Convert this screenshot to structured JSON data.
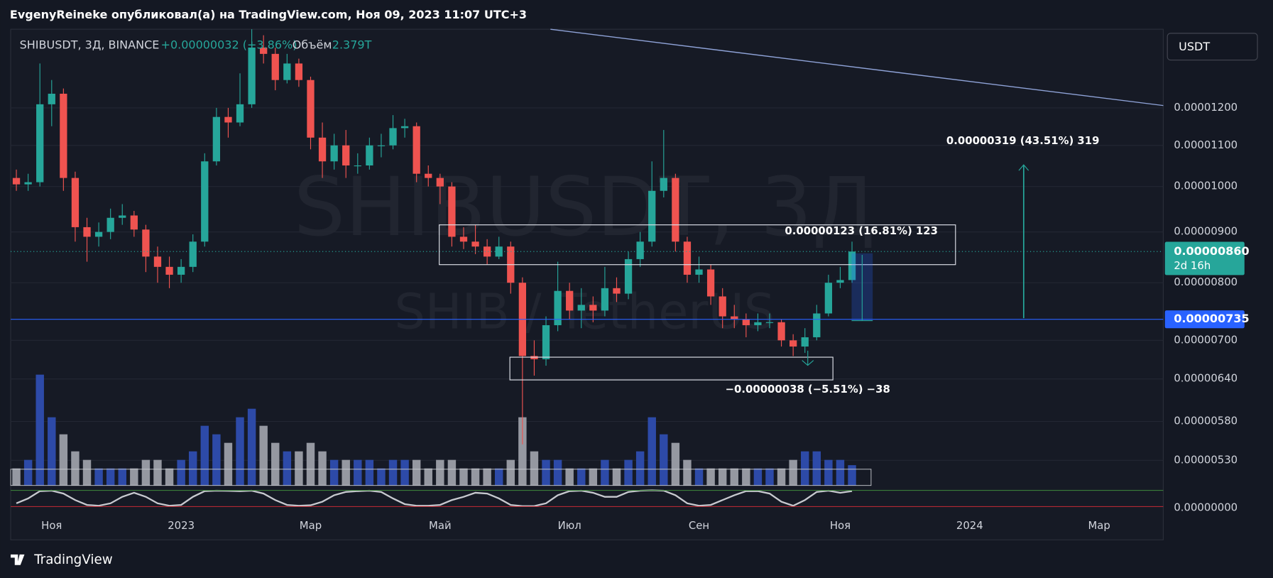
{
  "header": {
    "author_line": "EvgenyReineke опубликовал(а) на TradingView.com, Ноя 09, 2023 11:07 UTC+3"
  },
  "chart_data": {
    "type": "candlestick",
    "symbol": "SHIBUSDT, 3Д, BINANCE",
    "change": "+0.00000032 (+3.86%)",
    "watermark": "SHIBUSDT, 3Д",
    "watermark_sub": "SHIB / TetherUS",
    "currency": "USDT",
    "log": true,
    "grid": true,
    "up_color": "#26a69a",
    "down_color": "#ef5350",
    "categories": [
      null,
      null,
      null,
      "Ноя",
      null,
      null,
      null,
      null,
      null,
      null,
      null,
      null,
      null,
      null,
      "2023",
      null,
      null,
      null,
      null,
      null,
      null,
      null,
      null,
      null,
      null,
      "Мар",
      null,
      null,
      null,
      null,
      null,
      null,
      null,
      null,
      null,
      null,
      "Май",
      null,
      null,
      null,
      null,
      null,
      null,
      null,
      null,
      null,
      null,
      "Июл",
      null,
      null,
      null,
      null,
      null,
      null,
      null,
      null,
      null,
      null,
      "Сен",
      null,
      null,
      null,
      null,
      null,
      null,
      null,
      null,
      null,
      null,
      null,
      "Ноя",
      null,
      null,
      null,
      null,
      null,
      null,
      null,
      null,
      null,
      null,
      "2024",
      null,
      null,
      null,
      null,
      null,
      null,
      null,
      null,
      null,
      null,
      "Мар",
      null,
      null,
      null,
      null,
      null
    ],
    "open": [
      1.02e-05,
      1.005e-05,
      1.01e-05,
      1.21e-05,
      1.24e-05,
      1.02e-05,
      9.1e-06,
      8.9e-06,
      9e-06,
      9.3e-06,
      9.35e-06,
      9.05e-06,
      8.5e-06,
      8.3e-06,
      8.15e-06,
      8.3e-06,
      8.8e-06,
      1.06e-05,
      1.175e-05,
      1.16e-05,
      1.21e-05,
      1.38e-05,
      1.36e-05,
      1.28e-05,
      1.33e-05,
      1.28e-05,
      1.12e-05,
      1.06e-05,
      1.1e-05,
      1.05e-05,
      1.05e-05,
      1.1e-05,
      1.1e-05,
      1.145e-05,
      1.15e-05,
      1.03e-05,
      1.02e-05,
      1e-05,
      8.9e-06,
      8.8e-06,
      8.7e-06,
      8.5e-06,
      8.7e-06,
      8e-06,
      6.75e-06,
      6.7e-06,
      7.25e-06,
      7.85e-06,
      7.5e-06,
      7.6e-06,
      7.5e-06,
      7.9e-06,
      7.8e-06,
      8.45e-06,
      8.8e-06,
      9.9e-06,
      1.02e-05,
      8.8e-06,
      8.15e-06,
      8.25e-06,
      7.75e-06,
      7.4e-06,
      7.35e-06,
      7.25e-06,
      7.3e-06,
      7.3e-06,
      7e-06,
      6.9e-06,
      7.05e-06,
      7.45e-06,
      8e-06,
      8.05e-06,
      null,
      null,
      null,
      null,
      null,
      null,
      null,
      null,
      null,
      null,
      null,
      null,
      null,
      null,
      null,
      null,
      null,
      null,
      null,
      null,
      null,
      null,
      null,
      null,
      null,
      null
    ],
    "high": [
      1.04e-05,
      1.03e-05,
      1.33e-05,
      1.28e-05,
      1.255e-05,
      1.035e-05,
      9.3e-06,
      9.2e-06,
      9.5e-06,
      9.6e-06,
      9.45e-06,
      9.15e-06,
      8.7e-06,
      8.5e-06,
      8.45e-06,
      8.95e-06,
      1.08e-05,
      1.2e-05,
      1.2e-05,
      1.3e-05,
      1.44e-05,
      1.42e-05,
      1.38e-05,
      1.36e-05,
      1.345e-05,
      1.29e-05,
      1.16e-05,
      1.13e-05,
      1.14e-05,
      1.08e-05,
      1.12e-05,
      1.13e-05,
      1.18e-05,
      1.17e-05,
      1.16e-05,
      1.05e-05,
      1.03e-05,
      1.01e-05,
      9.1e-06,
      9.15e-06,
      8.85e-06,
      8.9e-06,
      8.8e-06,
      8.1e-06,
      7e-06,
      7.4e-06,
      8.4e-06,
      8e-06,
      7.9e-06,
      7.75e-06,
      8.3e-06,
      8.1e-06,
      8.6e-06,
      9e-06,
      1.06e-05,
      1.14e-05,
      1.03e-05,
      8.9e-06,
      8.5e-06,
      8.35e-06,
      7.9e-06,
      7.6e-06,
      7.45e-06,
      7.45e-06,
      7.45e-06,
      7.35e-06,
      7.1e-06,
      7.2e-06,
      7.6e-06,
      8.15e-06,
      8.3e-06,
      8.8e-06,
      null,
      null,
      null,
      null,
      null,
      null,
      null,
      null,
      null,
      null,
      null,
      null,
      null,
      null,
      null,
      null,
      null,
      null,
      null,
      null,
      null,
      null,
      null,
      null,
      null,
      null
    ],
    "low": [
      9.9e-06,
      9.9e-06,
      1e-05,
      1.15e-05,
      9.9e-06,
      8.8e-06,
      8.4e-06,
      8.7e-06,
      8.85e-06,
      9.15e-06,
      8.9e-06,
      8.2e-06,
      8e-06,
      7.9e-06,
      8e-06,
      8.2e-06,
      8.7e-06,
      1.05e-05,
      1.12e-05,
      1.15e-05,
      1.2e-05,
      1.33e-05,
      1.25e-05,
      1.27e-05,
      1.26e-05,
      1.09e-05,
      1.02e-05,
      1.04e-05,
      1.02e-05,
      1.03e-05,
      1.04e-05,
      1.07e-05,
      1.09e-05,
      1.12e-05,
      1.01e-05,
      1e-05,
      9.6e-06,
      8.7e-06,
      8.65e-06,
      8.55e-06,
      8.35e-06,
      8.45e-06,
      7.8e-06,
      5.5e-06,
      6.45e-06,
      6.6e-06,
      7.15e-06,
      7.35e-06,
      7.2e-06,
      7.3e-06,
      7.4e-06,
      7.65e-06,
      7.7e-06,
      8.3e-06,
      8.7e-06,
      9.75e-06,
      8.6e-06,
      8e-06,
      8e-06,
      7.6e-06,
      7.2e-06,
      7.2e-06,
      7.05e-06,
      7.15e-06,
      7.2e-06,
      6.9e-06,
      6.75e-06,
      6.8e-06,
      7e-06,
      7.4e-06,
      7.9e-06,
      8e-06,
      null,
      null,
      null,
      null,
      null,
      null,
      null,
      null,
      null,
      null,
      null,
      null,
      null,
      null,
      null,
      null,
      null,
      null,
      null,
      null,
      null,
      null,
      null,
      null,
      null,
      null
    ],
    "close": [
      1.005e-05,
      1.01e-05,
      1.21e-05,
      1.24e-05,
      1.02e-05,
      9.1e-06,
      8.9e-06,
      9e-06,
      9.3e-06,
      9.35e-06,
      9.05e-06,
      8.5e-06,
      8.3e-06,
      8.15e-06,
      8.3e-06,
      8.8e-06,
      1.06e-05,
      1.175e-05,
      1.16e-05,
      1.21e-05,
      1.38e-05,
      1.36e-05,
      1.28e-05,
      1.33e-05,
      1.28e-05,
      1.12e-05,
      1.06e-05,
      1.1e-05,
      1.05e-05,
      1.05e-05,
      1.1e-05,
      1.1e-05,
      1.145e-05,
      1.15e-05,
      1.03e-05,
      1.02e-05,
      1e-05,
      8.9e-06,
      8.8e-06,
      8.7e-06,
      8.5e-06,
      8.7e-06,
      8e-06,
      6.75e-06,
      6.7e-06,
      7.25e-06,
      7.85e-06,
      7.5e-06,
      7.6e-06,
      7.5e-06,
      7.9e-06,
      7.8e-06,
      8.45e-06,
      8.8e-06,
      9.9e-06,
      1.02e-05,
      8.8e-06,
      8.15e-06,
      8.25e-06,
      7.75e-06,
      7.4e-06,
      7.35e-06,
      7.25e-06,
      7.3e-06,
      7.3e-06,
      7e-06,
      6.9e-06,
      7.05e-06,
      7.45e-06,
      8e-06,
      8.05e-06,
      8.6e-06,
      null,
      null,
      null,
      null,
      null,
      null,
      null,
      null,
      null,
      null,
      null,
      null,
      null,
      null,
      null,
      null,
      null,
      null,
      null,
      null,
      null,
      null,
      null,
      null,
      null,
      null
    ],
    "ylim": [
      5e-06,
      1.44e-05
    ],
    "yticks": [
      {
        "value": 1.2e-05,
        "label": "0.00001200"
      },
      {
        "value": 1.1e-05,
        "label": "0.00001100"
      },
      {
        "value": 1e-05,
        "label": "0.00001000"
      },
      {
        "value": 9e-06,
        "label": "0.00000900"
      },
      {
        "value": 8e-06,
        "label": "0.00000800"
      },
      {
        "value": 7e-06,
        "label": "0.00000700"
      },
      {
        "value": 6.4e-06,
        "label": "0.00000640"
      },
      {
        "value": 5.8e-06,
        "label": "0.00000580"
      },
      {
        "value": 5.3e-06,
        "label": "0.00000530"
      }
    ],
    "last_price": {
      "value": 8.6e-06,
      "label": "0.00000860"
    },
    "countdown": "2d 16h",
    "hline": {
      "value": 7.35e-06,
      "label": "0.00000735"
    },
    "volume": {
      "name": "Объём",
      "last_label": "2.379T",
      "up_color": "#2d4aa8",
      "down_color": "#9598a1",
      "values": [
        2,
        3,
        13,
        8,
        6,
        4,
        3,
        2,
        2,
        2,
        2,
        3,
        3,
        2,
        3,
        4,
        7,
        6,
        5,
        8,
        9,
        7,
        5,
        4,
        4,
        5,
        4,
        3,
        3,
        3,
        3,
        2,
        3,
        3,
        3,
        2,
        3,
        3,
        2,
        2,
        2,
        2,
        3,
        8,
        4,
        3,
        3,
        2,
        2,
        2,
        3,
        2,
        3,
        4,
        8,
        6,
        5,
        3,
        2,
        2,
        2,
        2,
        2,
        2,
        2,
        2,
        3,
        4,
        4,
        3,
        3,
        2.379,
        null,
        null,
        null,
        null,
        null,
        null,
        null,
        null,
        null,
        null,
        null,
        null,
        null,
        null,
        null,
        null,
        null,
        null,
        null,
        null,
        null,
        null,
        null,
        null,
        null,
        null
      ]
    },
    "oscillator": {
      "color": "#c8cad0",
      "values": [
        20,
        50,
        95,
        98,
        80,
        40,
        10,
        5,
        20,
        60,
        85,
        60,
        20,
        5,
        10,
        60,
        95,
        98,
        97,
        95,
        98,
        80,
        40,
        10,
        5,
        8,
        30,
        70,
        90,
        95,
        98,
        90,
        50,
        15,
        5,
        5,
        10,
        40,
        60,
        85,
        80,
        50,
        10,
        3,
        3,
        20,
        70,
        95,
        98,
        85,
        60,
        60,
        90,
        98,
        100,
        98,
        70,
        20,
        5,
        10,
        40,
        70,
        95,
        95,
        80,
        30,
        5,
        40,
        90,
        98,
        85,
        95,
        null,
        null,
        null,
        null,
        null,
        null,
        null,
        null,
        null,
        null,
        null,
        null,
        null,
        null,
        null,
        null,
        null,
        null,
        null,
        null,
        null,
        null,
        null,
        null,
        null,
        null
      ]
    },
    "oscillator_axis_label": "0.00000000",
    "annotations": [
      "0.00000123 (16.81%) 123",
      "0.00000319 (43.51%) 319",
      "−0.00000038 (−5.51%) −38"
    ]
  },
  "footer": {
    "brand": "TradingView"
  }
}
